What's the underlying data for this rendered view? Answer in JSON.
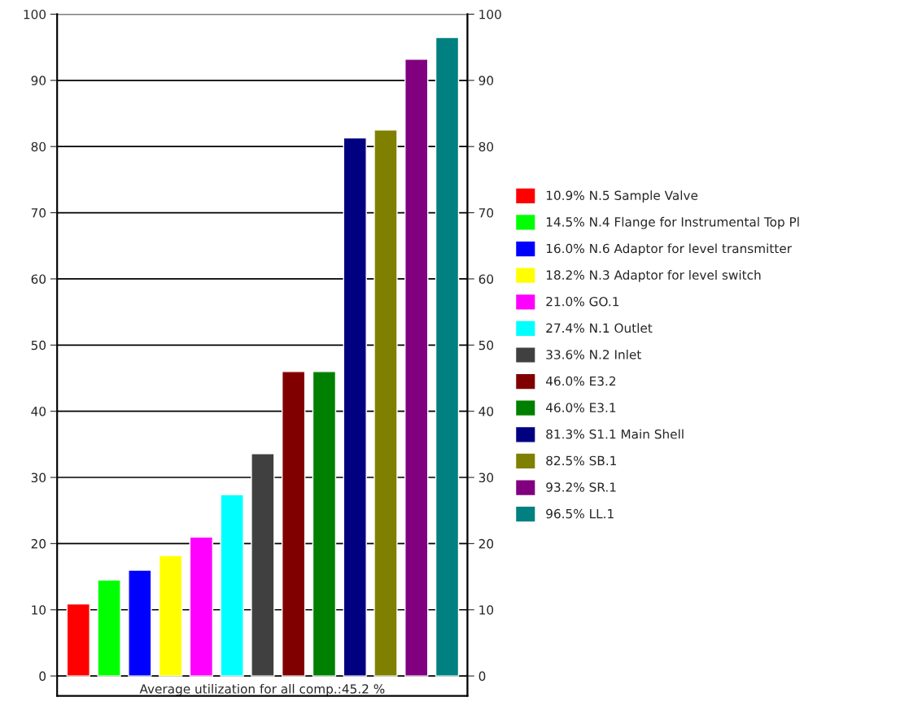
{
  "chart_data": {
    "type": "bar",
    "xlabel": "Average utilization for all comp.:45.2 %",
    "categories": [
      null,
      null,
      null,
      null,
      null,
      null,
      null,
      null,
      null,
      null,
      null,
      null,
      null
    ],
    "series": [
      {
        "name": "10.9% N.5 Sample Valve",
        "color": "#ff0000",
        "values": [
          10.9,
          null,
          null,
          null,
          null,
          null,
          null,
          null,
          null,
          null,
          null,
          null,
          null
        ]
      },
      {
        "name": "14.5% N.4 Flange for Instrumental Top Pl",
        "color": "#00ff00",
        "values": [
          null,
          14.5,
          null,
          null,
          null,
          null,
          null,
          null,
          null,
          null,
          null,
          null,
          null
        ]
      },
      {
        "name": "16.0% N.6 Adaptor for level transmitter",
        "color": "#0000ff",
        "values": [
          null,
          null,
          16.0,
          null,
          null,
          null,
          null,
          null,
          null,
          null,
          null,
          null,
          null
        ]
      },
      {
        "name": "18.2% N.3 Adaptor for level switch",
        "color": "#ffff00",
        "values": [
          null,
          null,
          null,
          18.2,
          null,
          null,
          null,
          null,
          null,
          null,
          null,
          null,
          null
        ]
      },
      {
        "name": "21.0% GO.1",
        "color": "#ff00ff",
        "values": [
          null,
          null,
          null,
          null,
          21.0,
          null,
          null,
          null,
          null,
          null,
          null,
          null,
          null
        ]
      },
      {
        "name": "27.4% N.1 Outlet",
        "color": "#00ffff",
        "values": [
          null,
          null,
          null,
          null,
          null,
          27.4,
          null,
          null,
          null,
          null,
          null,
          null,
          null
        ]
      },
      {
        "name": "33.6% N.2 Inlet",
        "color": "#404040",
        "values": [
          null,
          null,
          null,
          null,
          null,
          null,
          33.6,
          null,
          null,
          null,
          null,
          null,
          null
        ]
      },
      {
        "name": "46.0% E3.2",
        "color": "#800000",
        "values": [
          null,
          null,
          null,
          null,
          null,
          null,
          null,
          46.0,
          null,
          null,
          null,
          null,
          null
        ]
      },
      {
        "name": "46.0% E3.1",
        "color": "#008000",
        "values": [
          null,
          null,
          null,
          null,
          null,
          null,
          null,
          null,
          46.0,
          null,
          null,
          null,
          null
        ]
      },
      {
        "name": "81.3% S1.1 Main Shell",
        "color": "#000080",
        "values": [
          null,
          null,
          null,
          null,
          null,
          null,
          null,
          null,
          null,
          81.3,
          null,
          null,
          null
        ]
      },
      {
        "name": "82.5% SB.1",
        "color": "#808000",
        "values": [
          null,
          null,
          null,
          null,
          null,
          null,
          null,
          null,
          null,
          null,
          82.5,
          null,
          null
        ]
      },
      {
        "name": "93.2% SR.1",
        "color": "#800080",
        "values": [
          null,
          null,
          null,
          null,
          null,
          null,
          null,
          null,
          null,
          null,
          null,
          93.2,
          null
        ]
      },
      {
        "name": "96.5% LL.1",
        "color": "#008080",
        "values": [
          null,
          null,
          null,
          null,
          null,
          null,
          null,
          null,
          null,
          null,
          null,
          null,
          96.5
        ]
      }
    ],
    "ylim": [
      -3,
      100
    ],
    "yticks": [
      0,
      10,
      20,
      30,
      40,
      50,
      60,
      70,
      80,
      90,
      100
    ],
    "y2lim": [
      -3,
      100
    ],
    "y2ticks": [
      0,
      10,
      20,
      30,
      40,
      50,
      60,
      70,
      80,
      90,
      100
    ],
    "grid": "y",
    "legend": "right"
  }
}
